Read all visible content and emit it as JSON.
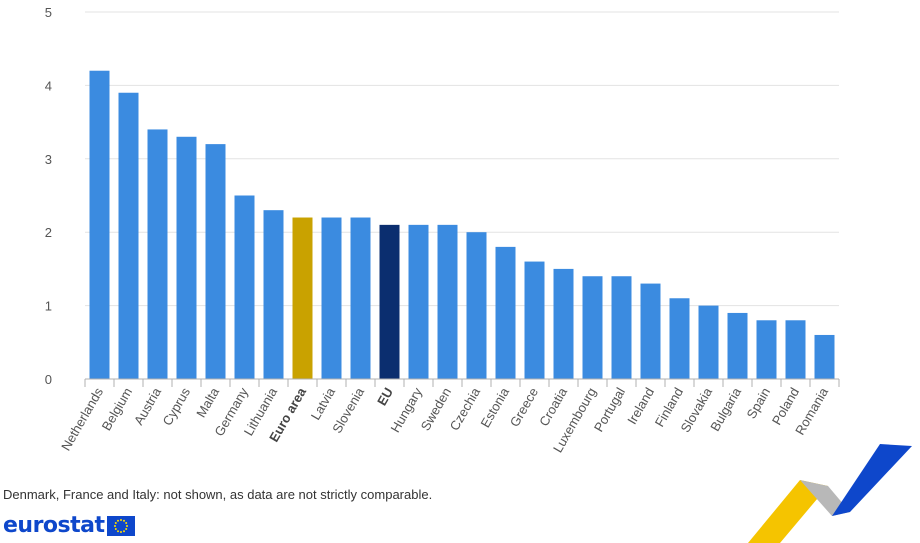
{
  "chart_data": {
    "type": "bar",
    "categories": [
      "Netherlands",
      "Belgium",
      "Austria",
      "Cyprus",
      "Malta",
      "Germany",
      "Lithuania",
      "Euro area",
      "Latvia",
      "Slovenia",
      "EU",
      "Hungary",
      "Sweden",
      "Czechia",
      "Estonia",
      "Greece",
      "Croatia",
      "Luxembourg",
      "Portugal",
      "Ireland",
      "Finland",
      "Slovakia",
      "Bulgaria",
      "Spain",
      "Poland",
      "Romania"
    ],
    "values": [
      4.2,
      3.9,
      3.4,
      3.3,
      3.2,
      2.5,
      2.3,
      2.2,
      2.2,
      2.2,
      2.1,
      2.1,
      2.1,
      2.0,
      1.8,
      1.6,
      1.5,
      1.4,
      1.4,
      1.3,
      1.1,
      1.0,
      0.9,
      0.8,
      0.8,
      0.6
    ],
    "highlight": {
      "Euro area": "#c9a200",
      "EU": "#0b2e6f"
    },
    "bold_categories": [
      "Euro area",
      "EU"
    ],
    "bar_color": "#3b8be0",
    "ylim": [
      0,
      5
    ],
    "yticks": [
      0,
      1,
      2,
      3,
      4,
      5
    ],
    "grid": true,
    "title": "",
    "xlabel": "",
    "ylabel": ""
  },
  "footnote": "Denmark, France and Italy: not shown, as data are not strictly comparable.",
  "logo": {
    "text": "eurostat",
    "flag_icon": "eu-flag-icon",
    "flag_color": "#0e47cb",
    "star_color": "#ffdd00"
  },
  "decoration": {
    "icon": "eurostat-swoosh-icon",
    "colors": [
      "#f5c400",
      "#b0b0b0",
      "#0e47cb"
    ]
  }
}
